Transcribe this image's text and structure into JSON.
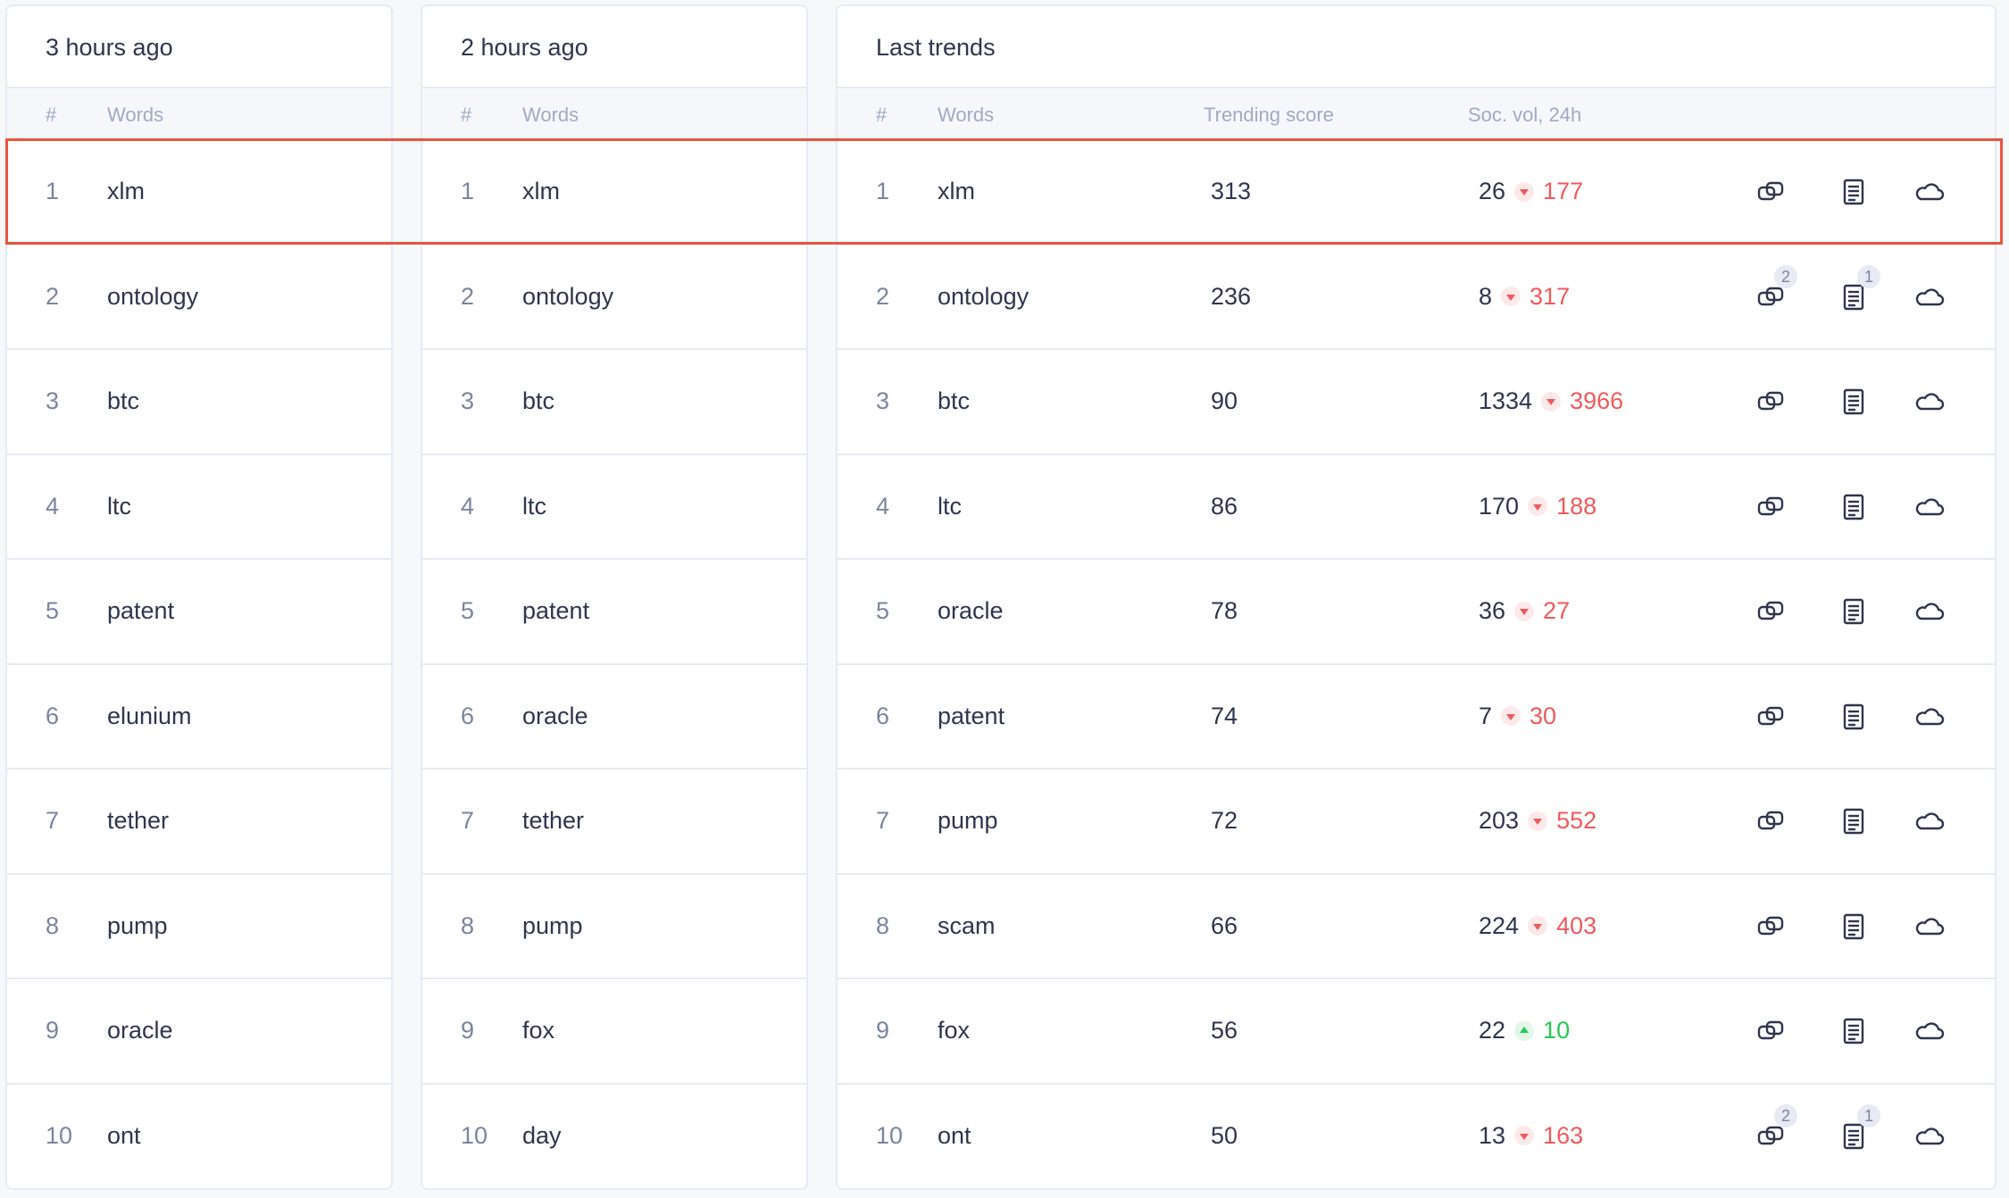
{
  "highlight_color": "#e8553f",
  "colors": {
    "down": "#f0595e",
    "up": "#26c953",
    "muted": "#9faac4"
  },
  "panels": [
    {
      "title": "3 hours ago",
      "headers": {
        "num": "#",
        "words": "Words"
      },
      "rows": [
        {
          "num": "1",
          "word": "xlm"
        },
        {
          "num": "2",
          "word": "ontology"
        },
        {
          "num": "3",
          "word": "btc"
        },
        {
          "num": "4",
          "word": "ltc"
        },
        {
          "num": "5",
          "word": "patent"
        },
        {
          "num": "6",
          "word": "elunium"
        },
        {
          "num": "7",
          "word": "tether"
        },
        {
          "num": "8",
          "word": "pump"
        },
        {
          "num": "9",
          "word": "oracle"
        },
        {
          "num": "10",
          "word": "ont"
        }
      ]
    },
    {
      "title": "2 hours ago",
      "headers": {
        "num": "#",
        "words": "Words"
      },
      "rows": [
        {
          "num": "1",
          "word": "xlm"
        },
        {
          "num": "2",
          "word": "ontology"
        },
        {
          "num": "3",
          "word": "btc"
        },
        {
          "num": "4",
          "word": "ltc"
        },
        {
          "num": "5",
          "word": "patent"
        },
        {
          "num": "6",
          "word": "oracle"
        },
        {
          "num": "7",
          "word": "tether"
        },
        {
          "num": "8",
          "word": "pump"
        },
        {
          "num": "9",
          "word": "fox"
        },
        {
          "num": "10",
          "word": "day"
        }
      ]
    },
    {
      "title": "Last trends",
      "headers": {
        "num": "#",
        "words": "Words",
        "score": "Trending score",
        "vol": "Soc. vol, 24h"
      },
      "icons": [
        "connected-words-icon",
        "document-icon",
        "word-cloud-icon"
      ],
      "rows": [
        {
          "num": "1",
          "word": "xlm",
          "score": "313",
          "vol": "26",
          "delta": "177",
          "dir": "down",
          "badge1": "",
          "badge2": ""
        },
        {
          "num": "2",
          "word": "ontology",
          "score": "236",
          "vol": "8",
          "delta": "317",
          "dir": "down",
          "badge1": "2",
          "badge2": "1"
        },
        {
          "num": "3",
          "word": "btc",
          "score": "90",
          "vol": "1334",
          "delta": "3966",
          "dir": "down",
          "badge1": "",
          "badge2": ""
        },
        {
          "num": "4",
          "word": "ltc",
          "score": "86",
          "vol": "170",
          "delta": "188",
          "dir": "down",
          "badge1": "",
          "badge2": ""
        },
        {
          "num": "5",
          "word": "oracle",
          "score": "78",
          "vol": "36",
          "delta": "27",
          "dir": "down",
          "badge1": "",
          "badge2": ""
        },
        {
          "num": "6",
          "word": "patent",
          "score": "74",
          "vol": "7",
          "delta": "30",
          "dir": "down",
          "badge1": "",
          "badge2": ""
        },
        {
          "num": "7",
          "word": "pump",
          "score": "72",
          "vol": "203",
          "delta": "552",
          "dir": "down",
          "badge1": "",
          "badge2": ""
        },
        {
          "num": "8",
          "word": "scam",
          "score": "66",
          "vol": "224",
          "delta": "403",
          "dir": "down",
          "badge1": "",
          "badge2": ""
        },
        {
          "num": "9",
          "word": "fox",
          "score": "56",
          "vol": "22",
          "delta": "10",
          "dir": "up",
          "badge1": "",
          "badge2": ""
        },
        {
          "num": "10",
          "word": "ont",
          "score": "50",
          "vol": "13",
          "delta": "163",
          "dir": "down",
          "badge1": "2",
          "badge2": "1"
        }
      ]
    }
  ]
}
